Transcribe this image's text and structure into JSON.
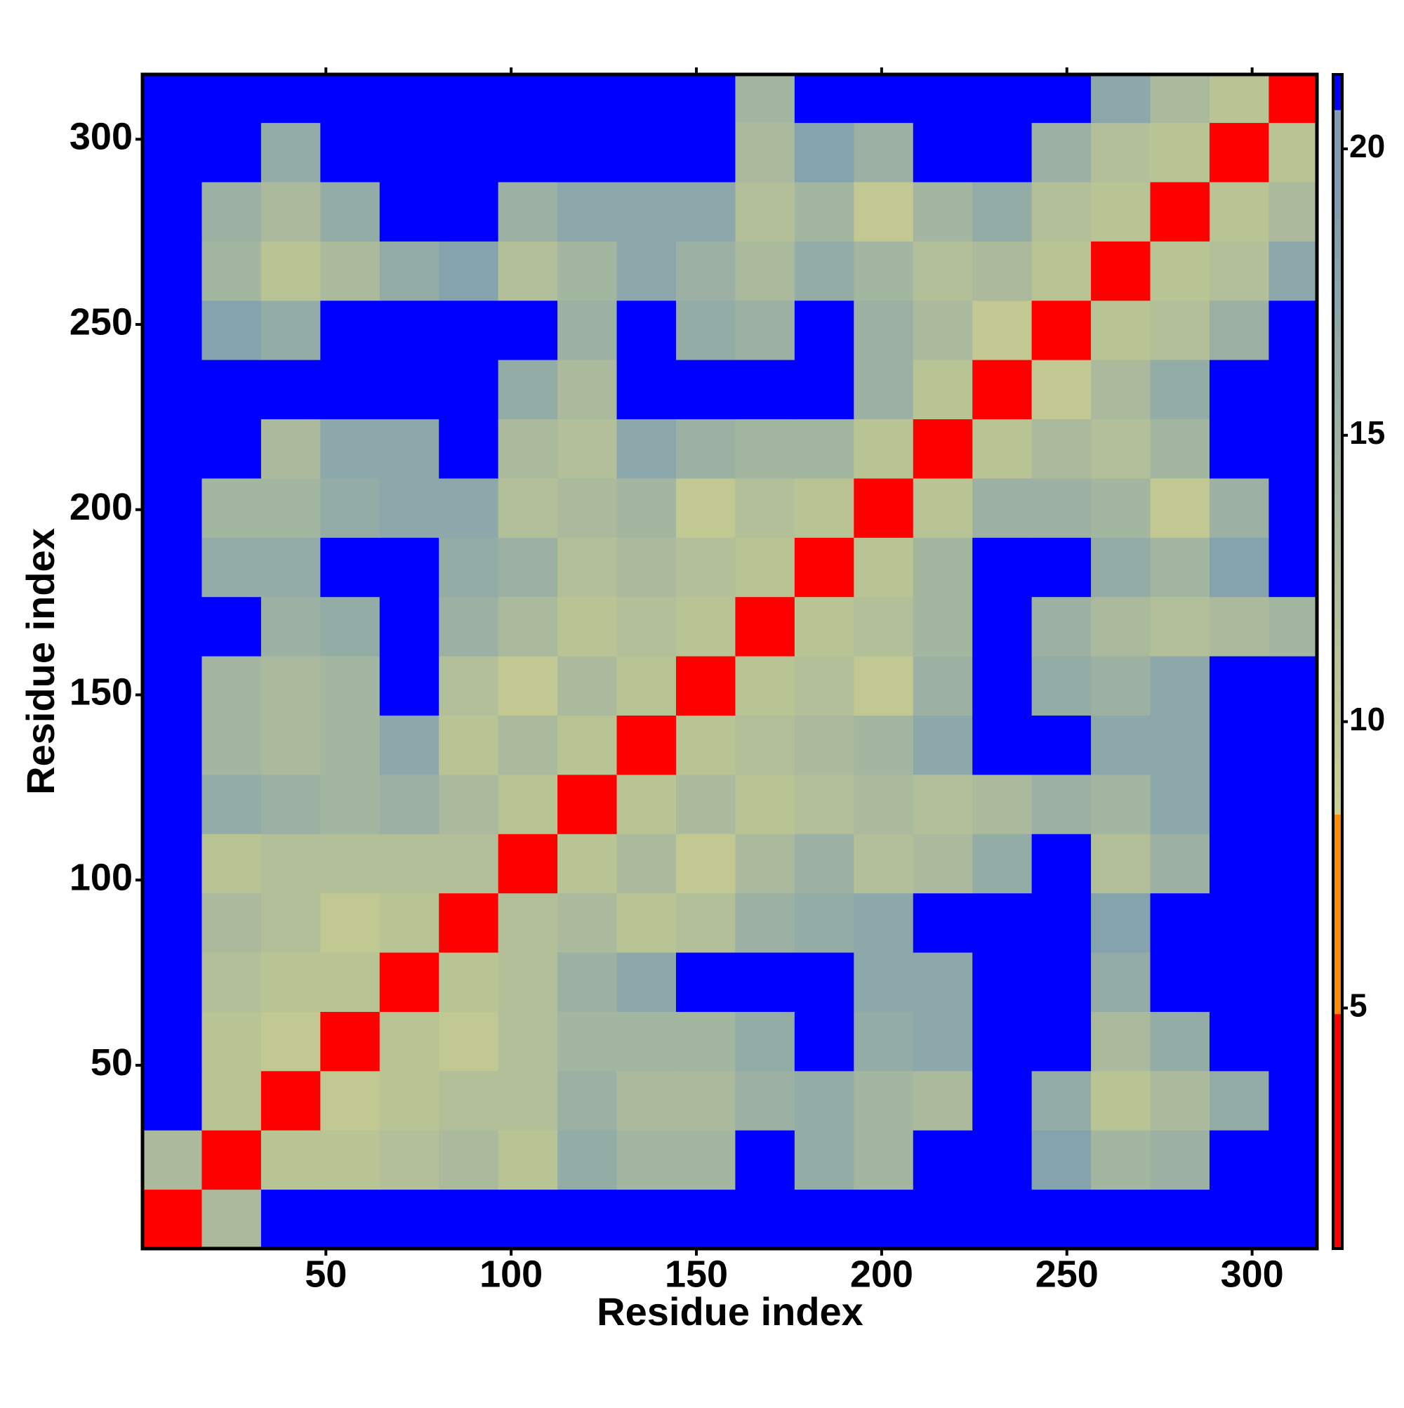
{
  "chart_data": {
    "type": "heatmap",
    "xlabel": "Residue index",
    "ylabel": "Residue index",
    "x": [
      8.5,
      24.5,
      40.5,
      56.5,
      72.5,
      88.5,
      104.5,
      120.5,
      136.5,
      152.5,
      168.5,
      184.5,
      200.5,
      216.5,
      232.5,
      248.5,
      264.5,
      280.5,
      296.5,
      312.5
    ],
    "y": [
      8.5,
      24.5,
      40.5,
      56.5,
      72.5,
      88.5,
      104.5,
      120.5,
      136.5,
      152.5,
      168.5,
      184.5,
      200.5,
      216.5,
      232.5,
      248.5,
      264.5,
      280.5,
      296.5,
      312.5
    ],
    "values": [
      [
        4,
        13,
        21,
        21,
        21,
        21,
        21,
        21,
        21,
        21,
        21,
        21,
        21,
        21,
        21,
        21,
        21,
        21,
        21,
        21
      ],
      [
        13,
        4,
        11,
        11,
        12,
        13,
        11,
        16,
        14,
        14,
        21,
        16,
        14,
        21,
        21,
        18,
        14,
        15,
        21,
        21
      ],
      [
        21,
        11,
        4,
        10,
        11,
        12,
        12,
        15,
        13,
        13,
        15,
        16,
        14,
        13,
        21,
        16,
        11,
        13,
        16,
        21
      ],
      [
        21,
        11,
        10,
        4,
        11,
        10,
        12,
        14,
        14,
        14,
        16,
        21,
        16,
        17,
        21,
        21,
        13,
        16,
        21,
        21
      ],
      [
        21,
        12,
        11,
        11,
        4,
        11,
        12,
        15,
        17,
        21,
        21,
        21,
        17,
        17,
        21,
        21,
        16,
        21,
        21,
        21
      ],
      [
        21,
        13,
        12,
        10,
        11,
        4,
        12,
        13,
        11,
        12,
        15,
        16,
        17,
        21,
        21,
        21,
        18,
        21,
        21,
        21
      ],
      [
        21,
        11,
        12,
        12,
        12,
        12,
        4,
        11,
        13,
        10,
        13,
        15,
        12,
        13,
        16,
        21,
        12,
        15,
        21,
        21
      ],
      [
        21,
        16,
        15,
        14,
        15,
        13,
        11,
        4,
        11,
        13,
        11,
        12,
        13,
        12,
        13,
        15,
        14,
        17,
        21,
        21
      ],
      [
        21,
        14,
        13,
        14,
        17,
        11,
        13,
        11,
        4,
        11,
        12,
        13,
        14,
        17,
        21,
        21,
        17,
        17,
        21,
        21
      ],
      [
        21,
        14,
        13,
        14,
        21,
        12,
        10,
        13,
        11,
        4,
        11,
        12,
        10,
        15,
        21,
        16,
        15,
        17,
        21,
        21
      ],
      [
        21,
        21,
        15,
        16,
        21,
        15,
        13,
        11,
        12,
        11,
        4,
        11,
        12,
        14,
        21,
        15,
        13,
        12,
        13,
        14
      ],
      [
        21,
        16,
        16,
        21,
        21,
        16,
        15,
        12,
        13,
        12,
        11,
        4,
        11,
        14,
        21,
        21,
        16,
        14,
        18,
        21
      ],
      [
        21,
        14,
        14,
        16,
        17,
        17,
        12,
        13,
        14,
        10,
        12,
        11,
        4,
        11,
        15,
        15,
        14,
        10,
        15,
        21
      ],
      [
        21,
        21,
        13,
        17,
        17,
        21,
        13,
        12,
        17,
        15,
        14,
        14,
        11,
        4,
        11,
        13,
        12,
        14,
        21,
        21
      ],
      [
        21,
        21,
        21,
        21,
        21,
        21,
        16,
        13,
        21,
        21,
        21,
        21,
        15,
        11,
        4,
        10,
        13,
        16,
        21,
        21
      ],
      [
        21,
        18,
        16,
        21,
        21,
        21,
        21,
        15,
        21,
        16,
        15,
        21,
        15,
        13,
        10,
        4,
        11,
        12,
        15,
        21
      ],
      [
        21,
        14,
        11,
        13,
        16,
        18,
        12,
        14,
        17,
        15,
        13,
        16,
        14,
        12,
        13,
        11,
        4,
        11,
        12,
        17
      ],
      [
        21,
        15,
        13,
        16,
        21,
        21,
        15,
        17,
        17,
        17,
        12,
        14,
        10,
        14,
        16,
        12,
        11,
        4,
        11,
        13
      ],
      [
        21,
        21,
        16,
        21,
        21,
        21,
        21,
        21,
        21,
        21,
        13,
        18,
        15,
        21,
        21,
        15,
        12,
        11,
        4,
        11
      ],
      [
        21,
        21,
        21,
        21,
        21,
        21,
        21,
        21,
        21,
        21,
        14,
        21,
        21,
        21,
        21,
        21,
        17,
        13,
        11,
        4
      ]
    ],
    "xlim": [
      0.5,
      317.5
    ],
    "ylim": [
      0.5,
      317.5
    ],
    "xticks": [
      50,
      100,
      150,
      200,
      250,
      300
    ],
    "yticks": [
      50,
      100,
      150,
      200,
      250,
      300
    ],
    "clim": [
      0.8,
      21.3
    ],
    "cticks": [
      5,
      10,
      15,
      20
    ],
    "colors": [
      "#ff0000",
      "#ff8c00",
      "#cdd08c",
      "#7f9fb0",
      "#0000ff"
    ]
  }
}
